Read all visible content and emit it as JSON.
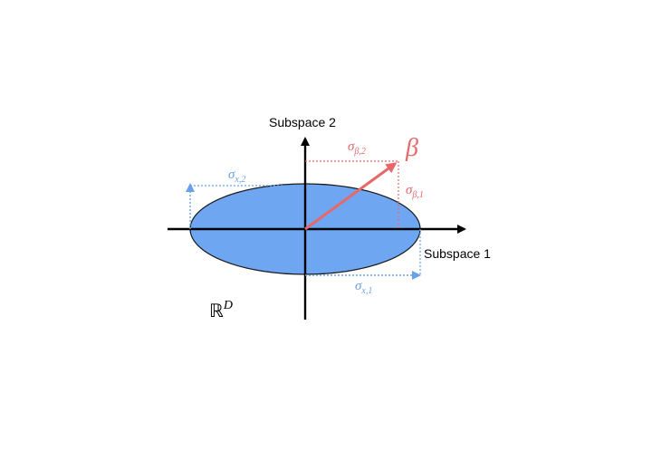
{
  "colors": {
    "ellipse_fill": "#6ea6f2",
    "ellipse_stroke": "#1a1a1a",
    "axis": "#000000",
    "beta": "#e8686a",
    "sigma_x": "#6aa0e8"
  },
  "axes": {
    "horizontal_label": "Subspace 1",
    "vertical_label": "Subspace 2"
  },
  "vector": {
    "symbol": "β",
    "sigma_beta_2": {
      "base": "σ",
      "sub": "β,2"
    },
    "sigma_beta_1": {
      "base": "σ",
      "sub": "β,1"
    }
  },
  "ellipse": {
    "sigma_x_2": {
      "base": "σ",
      "sub": "x,2"
    },
    "sigma_x_1": {
      "base": "σ",
      "sub": "x,1"
    }
  },
  "space": {
    "base": "ℝ",
    "sup": "D"
  }
}
